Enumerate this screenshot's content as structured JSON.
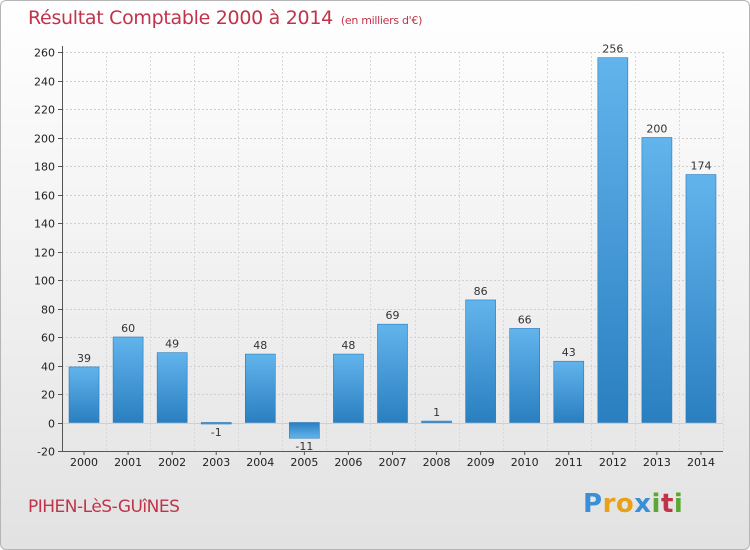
{
  "title": "Résultat Comptable 2000 à 2014",
  "subtitle": "(en milliers d'€)",
  "town": "PIHEN-LèS-GUîNES",
  "logo": {
    "letters": [
      "P",
      "r",
      "o",
      "x",
      "i",
      "t",
      "i"
    ],
    "colors": [
      "#3a8fd6",
      "#e8a21a",
      "#e8a21a",
      "#3a8fd6",
      "#5aa832",
      "#c0334a",
      "#5aa832"
    ]
  },
  "chart_data": {
    "type": "bar",
    "categories": [
      "2000",
      "2001",
      "2002",
      "2003",
      "2004",
      "2005",
      "2006",
      "2007",
      "2008",
      "2009",
      "2010",
      "2011",
      "2012",
      "2013",
      "2014"
    ],
    "values": [
      39,
      60,
      49,
      -1,
      48,
      -11,
      48,
      69,
      1,
      86,
      66,
      43,
      256,
      200,
      174
    ],
    "value_labels": [
      "39",
      "60",
      "49",
      "-1",
      "48",
      "-11",
      "48",
      "69",
      "1",
      "86",
      "66",
      "43",
      "256",
      "200",
      "174"
    ],
    "ylim": [
      -20,
      260
    ],
    "yticks": [
      -20,
      0,
      20,
      40,
      60,
      80,
      100,
      120,
      140,
      160,
      180,
      200,
      220,
      240,
      260
    ],
    "grid": true,
    "bar_color_light": "#62b4ec",
    "bar_color_dark": "#2a7fc0"
  }
}
